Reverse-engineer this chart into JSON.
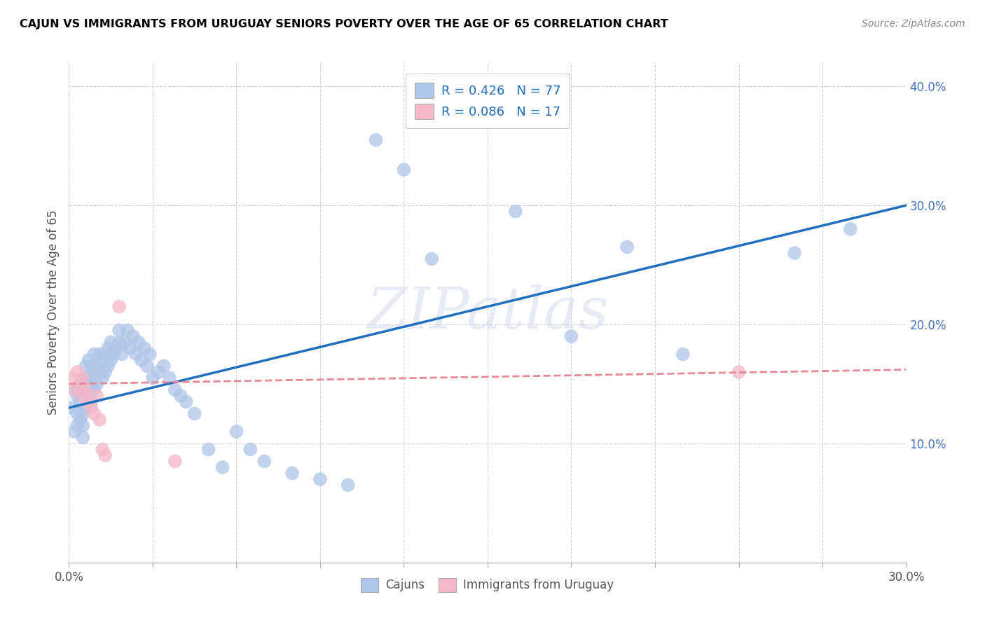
{
  "title": "CAJUN VS IMMIGRANTS FROM URUGUAY SENIORS POVERTY OVER THE AGE OF 65 CORRELATION CHART",
  "source": "Source: ZipAtlas.com",
  "ylabel": "Seniors Poverty Over the Age of 65",
  "xlim": [
    0.0,
    0.3
  ],
  "ylim": [
    0.0,
    0.42
  ],
  "xtick_vals": [
    0.0,
    0.03,
    0.06,
    0.09,
    0.12,
    0.15,
    0.18,
    0.21,
    0.24,
    0.27,
    0.3
  ],
  "xtick_show_labels": [
    0.0,
    0.3
  ],
  "ytick_vals": [
    0.1,
    0.2,
    0.3,
    0.4
  ],
  "ytick_labels": [
    "10.0%",
    "20.0%",
    "30.0%",
    "40.0%"
  ],
  "legend_labels": [
    "Cajuns",
    "Immigrants from Uruguay"
  ],
  "R_cajun": 0.426,
  "N_cajun": 77,
  "R_uruguay": 0.086,
  "N_uruguay": 17,
  "cajun_color": "#aec6e8",
  "uruguay_color": "#f4b8c8",
  "line_cajun_color": "#1f6fbf",
  "line_uruguay_color": "#e8899a",
  "watermark": "ZIPatlas",
  "cajun_x": [
    0.001,
    0.002,
    0.002,
    0.003,
    0.003,
    0.003,
    0.004,
    0.004,
    0.004,
    0.005,
    0.005,
    0.005,
    0.005,
    0.006,
    0.006,
    0.006,
    0.007,
    0.007,
    0.007,
    0.008,
    0.008,
    0.008,
    0.009,
    0.009,
    0.009,
    0.01,
    0.01,
    0.011,
    0.011,
    0.012,
    0.012,
    0.013,
    0.013,
    0.014,
    0.014,
    0.015,
    0.015,
    0.016,
    0.017,
    0.018,
    0.018,
    0.019,
    0.02,
    0.021,
    0.022,
    0.023,
    0.024,
    0.025,
    0.026,
    0.027,
    0.028,
    0.029,
    0.03,
    0.032,
    0.034,
    0.036,
    0.038,
    0.04,
    0.042,
    0.045,
    0.05,
    0.055,
    0.06,
    0.065,
    0.07,
    0.08,
    0.09,
    0.1,
    0.11,
    0.12,
    0.13,
    0.16,
    0.18,
    0.2,
    0.22,
    0.26,
    0.28
  ],
  "cajun_y": [
    0.13,
    0.11,
    0.145,
    0.115,
    0.125,
    0.14,
    0.12,
    0.135,
    0.15,
    0.105,
    0.115,
    0.125,
    0.145,
    0.13,
    0.155,
    0.165,
    0.14,
    0.155,
    0.17,
    0.135,
    0.15,
    0.165,
    0.145,
    0.16,
    0.175,
    0.15,
    0.165,
    0.16,
    0.175,
    0.155,
    0.17,
    0.16,
    0.175,
    0.165,
    0.18,
    0.17,
    0.185,
    0.175,
    0.18,
    0.185,
    0.195,
    0.175,
    0.185,
    0.195,
    0.18,
    0.19,
    0.175,
    0.185,
    0.17,
    0.18,
    0.165,
    0.175,
    0.155,
    0.16,
    0.165,
    0.155,
    0.145,
    0.14,
    0.135,
    0.125,
    0.095,
    0.08,
    0.11,
    0.095,
    0.085,
    0.075,
    0.07,
    0.065,
    0.355,
    0.33,
    0.255,
    0.295,
    0.19,
    0.265,
    0.175,
    0.26,
    0.28
  ],
  "uruguay_x": [
    0.001,
    0.002,
    0.003,
    0.004,
    0.005,
    0.005,
    0.006,
    0.007,
    0.008,
    0.009,
    0.01,
    0.011,
    0.012,
    0.013,
    0.018,
    0.038,
    0.24
  ],
  "uruguay_y": [
    0.155,
    0.145,
    0.16,
    0.15,
    0.14,
    0.155,
    0.145,
    0.135,
    0.13,
    0.125,
    0.14,
    0.12,
    0.095,
    0.09,
    0.215,
    0.085,
    0.16
  ],
  "cajun_line_x0": 0.0,
  "cajun_line_y0": 0.13,
  "cajun_line_x1": 0.3,
  "cajun_line_y1": 0.3,
  "uru_line_x0": 0.0,
  "uru_line_y0": 0.15,
  "uru_line_x1": 0.3,
  "uru_line_y1": 0.162
}
